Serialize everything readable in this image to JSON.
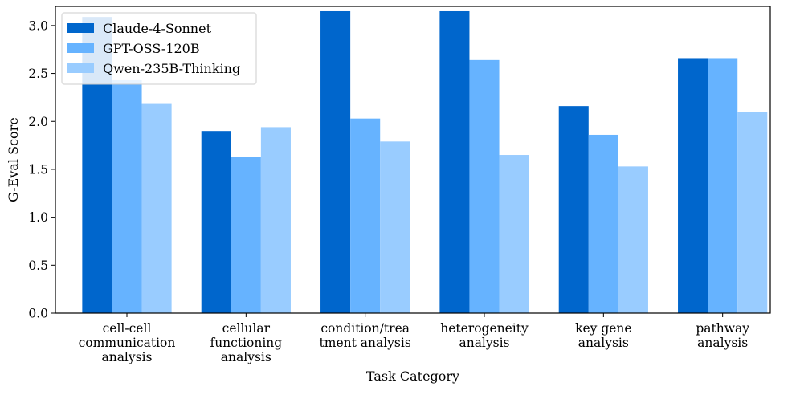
{
  "chart_data": {
    "type": "bar",
    "title": "",
    "xlabel": "Task Category",
    "ylabel": "G-Eval Score",
    "ylim": [
      0,
      3.2
    ],
    "yticks": [
      0.0,
      0.5,
      1.0,
      1.5,
      2.0,
      2.5,
      3.0
    ],
    "ytick_labels": [
      "0.0",
      "0.5",
      "1.0",
      "1.5",
      "2.0",
      "2.5",
      "3.0"
    ],
    "grid": false,
    "legend_position": "top-left",
    "categories": [
      [
        "cell-cell",
        "communication",
        "analysis"
      ],
      [
        "cellular",
        "functioning",
        "analysis"
      ],
      [
        "condition/trea",
        "tment analysis"
      ],
      [
        "heterogeneity",
        "analysis"
      ],
      [
        "key gene",
        "analysis"
      ],
      [
        "pathway",
        "analysis"
      ]
    ],
    "series": [
      {
        "name": "Claude-4-Sonnet",
        "color": "#0066cc",
        "values": [
          3.09,
          1.9,
          3.15,
          3.15,
          2.16,
          2.66
        ]
      },
      {
        "name": "GPT-OSS-120B",
        "color": "#66b3ff",
        "values": [
          2.43,
          1.63,
          2.03,
          2.64,
          1.86,
          2.66
        ]
      },
      {
        "name": "Qwen-235B-Thinking",
        "color": "#99ccff",
        "values": [
          2.19,
          1.94,
          1.79,
          1.65,
          1.53,
          2.1
        ]
      }
    ]
  }
}
